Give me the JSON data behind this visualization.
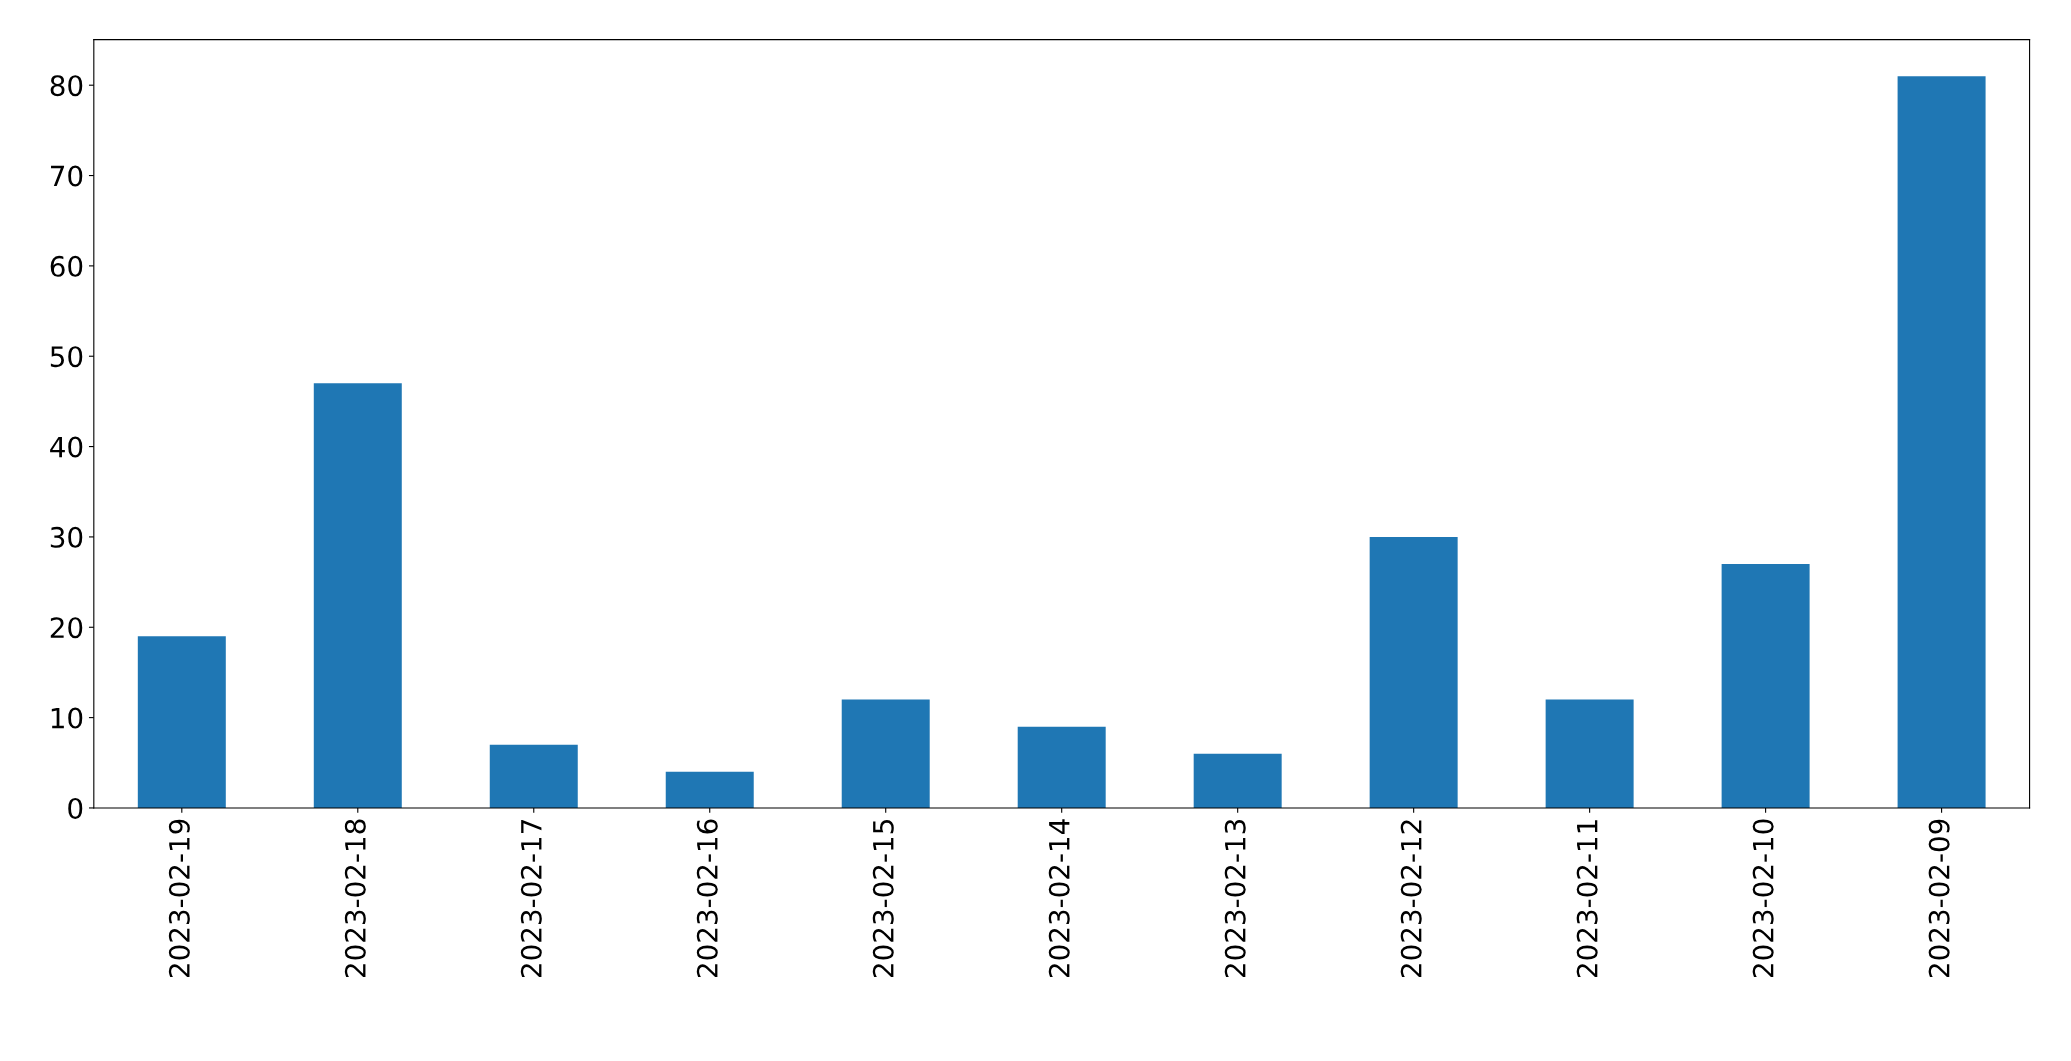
{
  "chart_data": {
    "type": "bar",
    "categories": [
      "2023-02-19",
      "2023-02-18",
      "2023-02-17",
      "2023-02-16",
      "2023-02-15",
      "2023-02-14",
      "2023-02-13",
      "2023-02-12",
      "2023-02-11",
      "2023-02-10",
      "2023-02-09"
    ],
    "values": [
      19,
      47,
      7,
      4,
      12,
      9,
      6,
      30,
      12,
      27,
      81
    ],
    "color": "#1f77b4",
    "ylim": [
      0,
      85.05
    ],
    "yticks": [
      0,
      10,
      20,
      30,
      40,
      50,
      60,
      70,
      80
    ],
    "grid": false
  }
}
